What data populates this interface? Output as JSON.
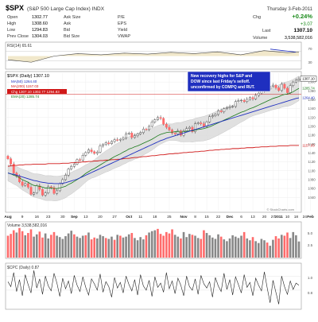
{
  "header": {
    "symbol": "$SPX",
    "name": "(S&P 500 Large Cap Index) INDX",
    "date": "Thursday  3-Feb-2011",
    "change_pct": "+0.24%",
    "change": "+3.07",
    "last": "1307.10",
    "volume": "3,538,582,016",
    "change_pct_label": "Chg",
    "last_label": "Last",
    "volume_label": "Volume",
    "watermark": "© StockCharts.com",
    "fields": [
      {
        "label": "Open",
        "value": "1302.77"
      },
      {
        "label": "High",
        "value": "1308.60"
      },
      {
        "label": "Low",
        "value": "1294.83"
      },
      {
        "label": "Prev Close",
        "value": "1304.03"
      }
    ],
    "fields2": [
      {
        "label": "Ask Size",
        "value": ""
      },
      {
        "label": "Ask",
        "value": ""
      },
      {
        "label": "Bid",
        "value": ""
      },
      {
        "label": "Bid Size",
        "value": ""
      }
    ],
    "fields3": [
      "P/E",
      "EPS",
      "Yield",
      "VWAP"
    ]
  },
  "colors": {
    "up": "#cccccc",
    "down": "#ff6b6b",
    "ma50": "#1f2fbf",
    "ma200": "#d01818",
    "ema20": "#1a7a1a",
    "band": "#d8d8d8",
    "annotation_bg": "#1f2fbf",
    "rsi_line": "#444444"
  },
  "annotation": {
    "lines": [
      "New recovery highs for S&P and",
      "DOW since last Friday's selloff.",
      "unconfirmed by COMPQ and RUT."
    ]
  },
  "chart_data": [
    {
      "type": "line",
      "panel": "RSI",
      "title": "RSI(14) 65.61",
      "ylim": [
        0,
        100
      ],
      "y_ticks": [
        "70",
        "30"
      ],
      "x": [
        0,
        10,
        20,
        30,
        40,
        50,
        60,
        70,
        80,
        90,
        100,
        110,
        120,
        125
      ],
      "values": [
        35,
        25,
        50,
        60,
        55,
        62,
        58,
        65,
        60,
        67,
        55,
        72,
        64,
        66
      ]
    },
    {
      "type": "candlestick",
      "panel": "price",
      "title": "$SPX (Daily) 1307.10",
      "legend": [
        "MA(50) 1264.40",
        "MA(200) 1157.03",
        "Chg 1307.10 1302.77 1294.83",
        "EMA(20) 1285.74"
      ],
      "ylim": [
        1010,
        1320
      ],
      "y_ticks": [
        1040,
        1060,
        1080,
        1100,
        1120,
        1140,
        1160,
        1180,
        1200,
        1220,
        1240,
        1260,
        1280,
        1300
      ],
      "y_tick_labels": [
        "1040",
        "1060",
        "1080",
        "1100",
        "1120",
        "1140",
        "1160",
        "1180",
        "1200",
        "1220",
        "1240",
        "1260",
        "1280",
        "1300"
      ],
      "right_labels": [
        {
          "value": 1307.1,
          "text": "1307.10"
        },
        {
          "value": 1285.74,
          "text": "1285.74"
        },
        {
          "value": 1264.4,
          "text": "1264.40"
        },
        {
          "value": 1157.03,
          "text": "1157.03"
        }
      ],
      "close": [
        1127,
        1115,
        1095,
        1088,
        1075,
        1067,
        1071,
        1063,
        1047,
        1050,
        1066,
        1058,
        1045,
        1050,
        1064,
        1062,
        1049,
        1055,
        1071,
        1080,
        1090,
        1104,
        1110,
        1115,
        1125,
        1124,
        1135,
        1141,
        1147,
        1143,
        1139,
        1142,
        1156,
        1159,
        1163,
        1161,
        1166,
        1170,
        1169,
        1171,
        1174,
        1183,
        1185,
        1175,
        1179,
        1183,
        1186,
        1194,
        1193,
        1200,
        1210,
        1215,
        1220,
        1218,
        1205,
        1198,
        1192,
        1185,
        1183,
        1190,
        1180,
        1190,
        1195,
        1198,
        1188,
        1206,
        1208,
        1206,
        1200,
        1210,
        1222,
        1224,
        1227,
        1235,
        1233,
        1240,
        1242,
        1244,
        1245,
        1256,
        1258,
        1259,
        1256,
        1261,
        1265,
        1262,
        1270,
        1275,
        1280,
        1285,
        1284,
        1290,
        1293,
        1287,
        1281,
        1295,
        1286,
        1276,
        1292,
        1300,
        1304,
        1307
      ],
      "ma50": [
        1095,
        1093,
        1092,
        1090,
        1088,
        1086,
        1084,
        1082,
        1080,
        1078,
        1077,
        1075,
        1074,
        1073,
        1072,
        1072,
        1071,
        1071,
        1071,
        1072,
        1073,
        1075,
        1077,
        1079,
        1081,
        1084,
        1087,
        1090,
        1093,
        1096,
        1099,
        1102,
        1105,
        1108,
        1111,
        1114,
        1117,
        1120,
        1123,
        1126,
        1129,
        1132,
        1135,
        1138,
        1141,
        1144,
        1147,
        1150,
        1153,
        1156,
        1159,
        1162,
        1165,
        1168,
        1170,
        1173,
        1175,
        1177,
        1179,
        1181,
        1183,
        1185,
        1187,
        1189,
        1191,
        1193,
        1195,
        1197,
        1199,
        1201,
        1203,
        1205,
        1207,
        1209,
        1211,
        1213,
        1215,
        1217,
        1219,
        1221,
        1223,
        1225,
        1227,
        1229,
        1231,
        1233,
        1235,
        1237,
        1239,
        1241,
        1243,
        1245,
        1247,
        1249,
        1251,
        1253,
        1255,
        1257,
        1259,
        1261,
        1263,
        1264.4
      ],
      "ma200": [
        1110,
        1111,
        1112,
        1112,
        1113,
        1113,
        1114,
        1114,
        1114,
        1115,
        1115,
        1115,
        1115,
        1115,
        1116,
        1116,
        1116,
        1116,
        1116,
        1117,
        1117,
        1117,
        1118,
        1118,
        1119,
        1119,
        1120,
        1120,
        1121,
        1121,
        1122,
        1122,
        1123,
        1123,
        1124,
        1124,
        1125,
        1125,
        1126,
        1126,
        1127,
        1128,
        1128,
        1129,
        1130,
        1130,
        1131,
        1132,
        1132,
        1133,
        1134,
        1134,
        1135,
        1136,
        1136,
        1137,
        1138,
        1138,
        1139,
        1139,
        1140,
        1141,
        1141,
        1142,
        1142,
        1143,
        1143,
        1144,
        1144,
        1145,
        1146,
        1146,
        1147,
        1147,
        1148,
        1148,
        1149,
        1149,
        1150,
        1150,
        1150,
        1151,
        1151,
        1152,
        1152,
        1152,
        1153,
        1153,
        1154,
        1154,
        1154,
        1155,
        1155,
        1155,
        1156,
        1156,
        1156,
        1156,
        1157,
        1157,
        1157,
        1157.03
      ],
      "ema20": [
        1095,
        1093,
        1090,
        1088,
        1084,
        1080,
        1077,
        1074,
        1070,
        1067,
        1066,
        1065,
        1063,
        1061,
        1061,
        1061,
        1060,
        1060,
        1061,
        1063,
        1065,
        1069,
        1072,
        1076,
        1080,
        1084,
        1089,
        1094,
        1098,
        1102,
        1105,
        1109,
        1113,
        1117,
        1121,
        1124,
        1128,
        1132,
        1135,
        1138,
        1142,
        1145,
        1149,
        1151,
        1154,
        1156,
        1159,
        1162,
        1165,
        1168,
        1171,
        1175,
        1179,
        1182,
        1184,
        1186,
        1187,
        1187,
        1188,
        1188,
        1187,
        1188,
        1189,
        1190,
        1190,
        1192,
        1193,
        1194,
        1195,
        1197,
        1199,
        1202,
        1205,
        1208,
        1211,
        1214,
        1217,
        1220,
        1223,
        1226,
        1229,
        1232,
        1234,
        1237,
        1240,
        1242,
        1245,
        1248,
        1251,
        1254,
        1257,
        1260,
        1263,
        1265,
        1267,
        1270,
        1272,
        1273,
        1275,
        1278,
        1282,
        1285.74
      ],
      "x_labels": [
        {
          "i": 0,
          "text": "Aug"
        },
        {
          "i": 5,
          "text": "9"
        },
        {
          "i": 10,
          "text": "16"
        },
        {
          "i": 14,
          "text": "23"
        },
        {
          "i": 19,
          "text": "30"
        },
        {
          "i": 23,
          "text": "Sep"
        },
        {
          "i": 27,
          "text": "13"
        },
        {
          "i": 32,
          "text": "20"
        },
        {
          "i": 37,
          "text": "27"
        },
        {
          "i": 42,
          "text": "Oct"
        },
        {
          "i": 46,
          "text": "11"
        },
        {
          "i": 51,
          "text": "18"
        },
        {
          "i": 56,
          "text": "25"
        },
        {
          "i": 61,
          "text": "Nov"
        },
        {
          "i": 65,
          "text": "8"
        },
        {
          "i": 69,
          "text": "15"
        },
        {
          "i": 73,
          "text": "22"
        },
        {
          "i": 77,
          "text": "Dec"
        },
        {
          "i": 81,
          "text": "6"
        },
        {
          "i": 85,
          "text": "13"
        },
        {
          "i": 89,
          "text": "20"
        },
        {
          "i": 92,
          "text": "27"
        },
        {
          "i": 94,
          "text": "2011"
        },
        {
          "i": 97,
          "text": "10"
        },
        {
          "i": 100,
          "text": "18"
        },
        {
          "i": 103,
          "text": "24"
        },
        {
          "i": 105,
          "text": "Feb"
        }
      ]
    },
    {
      "type": "bar",
      "panel": "volume",
      "title": "Volume 3,538,582,016",
      "y_ticks": [
        "5.0",
        "2.5"
      ],
      "ylim": [
        0,
        7.5
      ],
      "values": [
        4.8,
        5.2,
        6.0,
        5.5,
        6.5,
        5.8,
        4.9,
        5.4,
        6.2,
        4.6,
        5.1,
        5.7,
        4.4,
        5.3,
        4.2,
        5.0,
        5.6,
        4.8,
        4.5,
        4.1,
        4.7,
        5.3,
        5.9,
        5.1,
        4.6,
        4.3,
        4.8,
        4.9,
        5.5,
        4.0,
        4.4,
        4.2,
        5.0,
        4.7,
        4.3,
        4.1,
        4.6,
        3.9,
        5.0,
        4.8,
        4.4,
        4.6,
        5.1,
        5.4,
        4.3,
        3.8,
        4.5,
        4.0,
        4.9,
        5.5,
        5.8,
        6.0,
        6.3,
        5.2,
        4.8,
        5.6,
        5.3,
        6.2,
        5.0,
        4.6,
        4.2,
        5.6,
        4.5,
        5.2,
        5.0,
        4.8,
        4.3,
        4.1,
        6.0,
        5.4,
        4.9,
        4.4,
        4.1,
        5.1,
        4.6,
        4.0,
        3.6,
        4.2,
        4.9,
        4.6,
        4.3,
        4.8,
        5.6,
        4.2,
        3.8,
        4.5,
        3.6,
        3.2,
        4.1,
        3.8,
        3.3,
        2.6,
        3.9,
        4.7,
        4.2,
        5.0,
        4.8,
        5.5,
        4.3,
        5.6,
        4.9,
        3.54
      ],
      "down": [
        1,
        1,
        1,
        0,
        1,
        1,
        0,
        1,
        1,
        0,
        0,
        1,
        1,
        0,
        0,
        1,
        1,
        0,
        0,
        0,
        0,
        0,
        0,
        1,
        0,
        0,
        0,
        1,
        0,
        1,
        1,
        0,
        0,
        0,
        1,
        0,
        0,
        1,
        0,
        1,
        0,
        0,
        0,
        1,
        0,
        0,
        0,
        0,
        1,
        0,
        0,
        0,
        1,
        1,
        1,
        1,
        1,
        1,
        0,
        0,
        1,
        0,
        0,
        0,
        1,
        0,
        0,
        1,
        1,
        0,
        0,
        0,
        0,
        0,
        1,
        0,
        0,
        0,
        0,
        0,
        0,
        0,
        1,
        0,
        0,
        1,
        0,
        0,
        0,
        0,
        1,
        0,
        0,
        1,
        1,
        0,
        1,
        1,
        0,
        0,
        0,
        0
      ]
    },
    {
      "type": "line",
      "panel": "CPC",
      "title": "$CPC (Daily) 0.87",
      "ylim": [
        0.55,
        1.15
      ],
      "y_ticks": [
        "1.0",
        "0.8"
      ],
      "values": [
        0.92,
        0.85,
        1.05,
        0.78,
        0.95,
        0.72,
        1.02,
        0.88,
        0.76,
        1.08,
        0.83,
        0.96,
        0.74,
        1.0,
        0.86,
        0.79,
        1.04,
        0.9,
        0.71,
        0.97,
        0.82,
        0.93,
        0.75,
        1.01,
        0.87,
        0.78,
        0.99,
        0.84,
        0.73,
        0.96,
        0.89,
        0.8,
        1.03,
        0.77,
        0.92,
        0.85,
        0.7,
        0.98,
        0.83,
        0.91,
        0.76,
        1.0,
        0.88,
        0.79,
        0.95,
        0.73,
        1.02,
        0.86,
        0.8,
        0.94,
        0.71,
        0.99,
        0.84,
        0.9,
        0.77,
        1.05,
        0.82,
        0.93,
        0.75,
        0.97,
        0.87,
        0.72,
        1.0,
        0.85,
        0.8,
        0.96,
        0.74,
        1.01,
        0.89,
        0.83,
        0.92,
        0.7,
        0.98,
        0.86,
        0.78,
        1.04,
        0.81,
        0.95,
        0.73,
        0.99,
        0.88,
        0.76,
        1.02,
        0.84,
        0.91,
        0.72,
        0.97,
        0.87,
        0.79,
        1.06,
        0.83,
        0.62,
        0.94,
        0.77,
        0.6,
        1.0,
        0.85,
        0.74,
        0.93,
        0.81,
        0.9,
        0.87
      ]
    }
  ]
}
